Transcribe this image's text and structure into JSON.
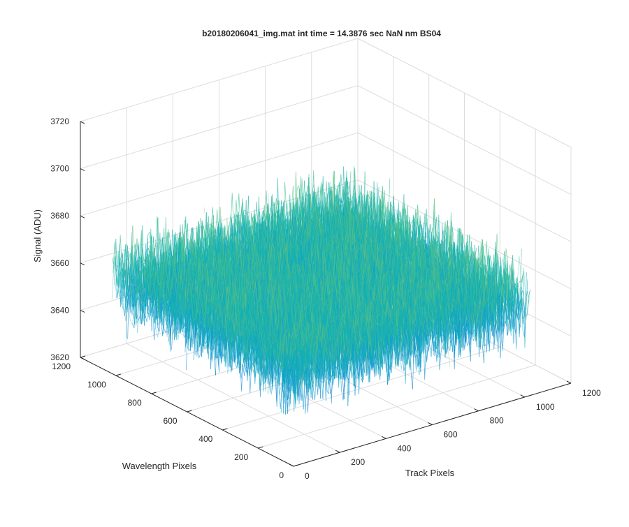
{
  "chart_data": {
    "type": "surface",
    "title": "b20180206041_img.mat int time = 14.3876 sec  NaN nm BS04",
    "xlabel": "Track Pixels",
    "ylabel": "Wavelength Pixels",
    "zlabel": "Signal (ADU)",
    "x_ticks": [
      "0",
      "200",
      "400",
      "600",
      "800",
      "1000",
      "1200"
    ],
    "y_ticks": [
      "0",
      "200",
      "400",
      "600",
      "800",
      "1000",
      "1200"
    ],
    "z_ticks": [
      "3620",
      "3640",
      "3660",
      "3680",
      "3700",
      "3720"
    ],
    "xlim": [
      0,
      1200
    ],
    "ylim": [
      0,
      1200
    ],
    "zlim": [
      3620,
      3720
    ],
    "data_extent": {
      "x": [
        1,
        1024
      ],
      "y": [
        1,
        1024
      ]
    },
    "signal_mean": 3660,
    "signal_noise_range": [
      3635,
      3700
    ],
    "colormap": "parula",
    "grid": true
  }
}
